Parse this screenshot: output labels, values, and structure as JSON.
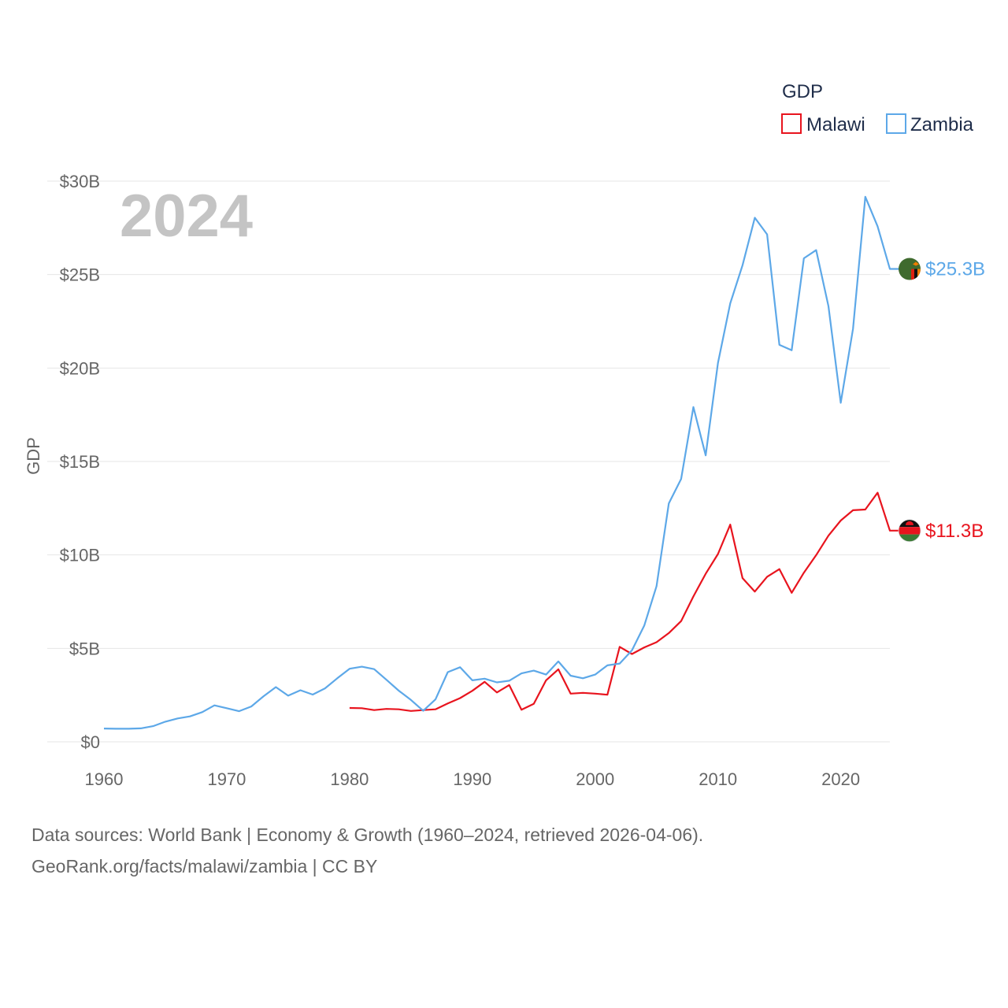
{
  "chart_data": {
    "type": "line",
    "title": "GDP",
    "ylabel": "GDP",
    "xlabel": "",
    "year_label": "2024",
    "xlim": [
      1960,
      2024
    ],
    "ylim": [
      0,
      30
    ],
    "x_ticks": [
      1960,
      1970,
      1980,
      1990,
      2000,
      2010,
      2020
    ],
    "x_tick_labels": [
      "1960",
      "1970",
      "1980",
      "1990",
      "2000",
      "2010",
      "2020"
    ],
    "y_ticks": [
      0,
      5,
      10,
      15,
      20,
      25,
      30
    ],
    "y_tick_labels": [
      "$0",
      "$5B",
      "$10B",
      "$15B",
      "$20B",
      "$25B",
      "$30B"
    ],
    "legend_position": "top-right",
    "series": [
      {
        "name": "Malawi",
        "color": "#e8141e",
        "icon": "malawi-flag-icon",
        "end_label": "$11.3B",
        "x": [
          1980,
          1981,
          1982,
          1983,
          1984,
          1985,
          1986,
          1987,
          1988,
          1989,
          1990,
          1991,
          1992,
          1993,
          1994,
          1995,
          1996,
          1997,
          1998,
          1999,
          2000,
          2001,
          2002,
          2003,
          2004,
          2005,
          2006,
          2007,
          2008,
          2009,
          2010,
          2011,
          2012,
          2013,
          2014,
          2015,
          2016,
          2017,
          2018,
          2019,
          2020,
          2021,
          2022,
          2023,
          2024
        ],
        "values": [
          1.81,
          1.8,
          1.7,
          1.76,
          1.74,
          1.65,
          1.7,
          1.74,
          2.05,
          2.34,
          2.73,
          3.21,
          2.64,
          3.04,
          1.72,
          2.03,
          3.29,
          3.88,
          2.58,
          2.62,
          2.58,
          2.52,
          5.08,
          4.7,
          5.05,
          5.33,
          5.82,
          6.46,
          7.78,
          8.99,
          10.05,
          11.62,
          8.76,
          8.04,
          8.83,
          9.24,
          7.97,
          9.05,
          9.99,
          11.03,
          11.84,
          12.39,
          12.43,
          13.33,
          11.3
        ]
      },
      {
        "name": "Zambia",
        "color": "#5da8e8",
        "icon": "zambia-flag-icon",
        "end_label": "$25.3B",
        "x": [
          1960,
          1961,
          1962,
          1963,
          1964,
          1965,
          1966,
          1967,
          1968,
          1969,
          1970,
          1971,
          1972,
          1973,
          1974,
          1975,
          1976,
          1977,
          1978,
          1979,
          1980,
          1981,
          1982,
          1983,
          1984,
          1985,
          1986,
          1987,
          1988,
          1989,
          1990,
          1991,
          1992,
          1993,
          1994,
          1995,
          1996,
          1997,
          1998,
          1999,
          2000,
          2001,
          2002,
          2003,
          2004,
          2005,
          2006,
          2007,
          2008,
          2009,
          2010,
          2011,
          2012,
          2013,
          2014,
          2015,
          2016,
          2017,
          2018,
          2019,
          2020,
          2021,
          2022,
          2023,
          2024
        ],
        "values": [
          0.71,
          0.7,
          0.7,
          0.72,
          0.84,
          1.08,
          1.25,
          1.36,
          1.59,
          1.95,
          1.8,
          1.64,
          1.89,
          2.44,
          2.93,
          2.47,
          2.76,
          2.53,
          2.86,
          3.4,
          3.91,
          4.02,
          3.89,
          3.32,
          2.74,
          2.24,
          1.66,
          2.27,
          3.73,
          3.99,
          3.29,
          3.38,
          3.18,
          3.27,
          3.66,
          3.81,
          3.6,
          4.3,
          3.54,
          3.4,
          3.6,
          4.09,
          4.19,
          4.9,
          6.22,
          8.33,
          12.76,
          14.06,
          17.91,
          15.33,
          20.27,
          23.46,
          25.5,
          28.04,
          27.15,
          21.24,
          20.95,
          25.87,
          26.31,
          23.31,
          18.14,
          22.1,
          29.16,
          27.58,
          25.3
        ]
      }
    ]
  },
  "source": {
    "line1": "Data sources: World Bank | Economy & Growth (1960–2024, retrieved 2026-04-06).",
    "line2": "GeoRank.org/facts/malawi/zambia | CC BY"
  }
}
